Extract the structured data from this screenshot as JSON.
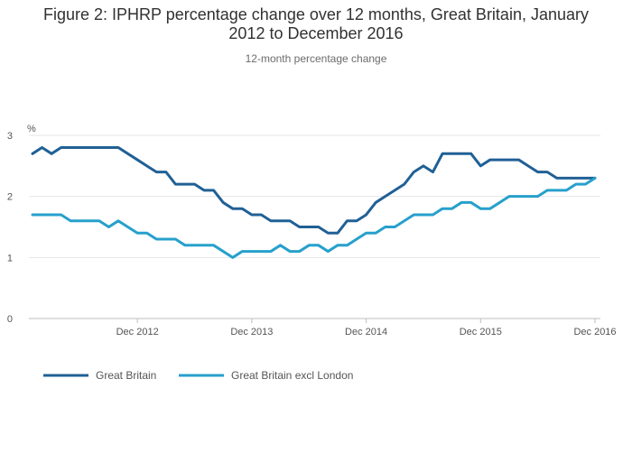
{
  "title": "Figure 2: IPHRP percentage change over 12 months, Great Britain, January 2012 to December 2016",
  "subtitle": "12-month percentage change",
  "colors": {
    "gb": "#206095",
    "gb_excl_london": "#27a0cc",
    "grid": "#e6e6e6",
    "axis": "#bdbdbd"
  },
  "chart_data": {
    "type": "line",
    "title": "Figure 2: IPHRP percentage change over 12 months, Great Britain, January 2012 to December 2016",
    "subtitle": "12-month percentage change",
    "ylabel": "%",
    "ylim": [
      0,
      3
    ],
    "yticks": [
      0,
      1,
      2,
      3
    ],
    "x_start": "Jan 2012",
    "x_end": "Dec 2016",
    "xticks": [
      "Dec 2012",
      "Dec 2013",
      "Dec 2014",
      "Dec 2015",
      "Dec 2016"
    ],
    "grid": true,
    "legend_position": "bottom-left",
    "series": [
      {
        "name": "Great Britain",
        "color": "#206095",
        "values": [
          2.7,
          2.8,
          2.7,
          2.8,
          2.8,
          2.8,
          2.8,
          2.8,
          2.8,
          2.8,
          2.7,
          2.6,
          2.5,
          2.4,
          2.4,
          2.2,
          2.2,
          2.2,
          2.1,
          2.1,
          1.9,
          1.8,
          1.8,
          1.7,
          1.7,
          1.6,
          1.6,
          1.6,
          1.5,
          1.5,
          1.5,
          1.4,
          1.4,
          1.6,
          1.6,
          1.7,
          1.9,
          2.0,
          2.1,
          2.2,
          2.4,
          2.5,
          2.4,
          2.7,
          2.7,
          2.7,
          2.7,
          2.5,
          2.6,
          2.6,
          2.6,
          2.6,
          2.5,
          2.4,
          2.4,
          2.3,
          2.3,
          2.3,
          2.3,
          2.3
        ]
      },
      {
        "name": "Great Britain excl London",
        "color": "#27a0cc",
        "values": [
          1.7,
          1.7,
          1.7,
          1.7,
          1.6,
          1.6,
          1.6,
          1.6,
          1.5,
          1.6,
          1.5,
          1.4,
          1.4,
          1.3,
          1.3,
          1.3,
          1.2,
          1.2,
          1.2,
          1.2,
          1.1,
          1.0,
          1.1,
          1.1,
          1.1,
          1.1,
          1.2,
          1.1,
          1.1,
          1.2,
          1.2,
          1.1,
          1.2,
          1.2,
          1.3,
          1.4,
          1.4,
          1.5,
          1.5,
          1.6,
          1.7,
          1.7,
          1.7,
          1.8,
          1.8,
          1.9,
          1.9,
          1.8,
          1.8,
          1.9,
          2.0,
          2.0,
          2.0,
          2.0,
          2.1,
          2.1,
          2.1,
          2.2,
          2.2,
          2.3
        ]
      }
    ]
  }
}
